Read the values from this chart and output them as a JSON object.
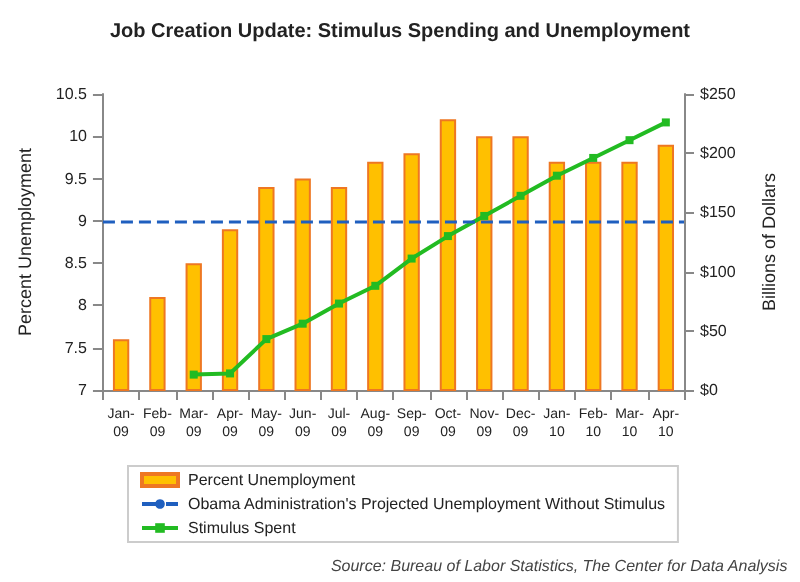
{
  "chart_data": {
    "type": "bar",
    "title": "Job Creation Update: Stimulus Spending and Unemployment",
    "ylabel": "Percent Unemployment",
    "y2label": "Billions of Dollars",
    "categories": [
      "Jan-09",
      "Feb-09",
      "Mar-09",
      "Apr-09",
      "May-09",
      "Jun-09",
      "Jul-09",
      "Aug-09",
      "Sep-09",
      "Oct-09",
      "Nov-09",
      "Dec-09",
      "Jan-10",
      "Feb-10",
      "Mar-10",
      "Apr-10"
    ],
    "series": [
      {
        "name": "Percent Unemployment",
        "color": "#ffc000",
        "values": [
          7.6,
          8.1,
          8.5,
          8.9,
          9.4,
          9.5,
          9.4,
          9.7,
          9.8,
          10.2,
          10.0,
          10.0,
          9.7,
          9.7,
          9.7,
          9.9
        ]
      },
      {
        "name": "Stimulus Spent",
        "type": "line",
        "axis": "y2",
        "color": "#22bb22",
        "marker": "square",
        "values": [
          null,
          null,
          13,
          14,
          43,
          56,
          73,
          88,
          111,
          130,
          147,
          164,
          181,
          196,
          211,
          226
        ]
      }
    ],
    "ref_lines": [
      {
        "axis": "y",
        "value": 9,
        "label": "Obama Administration's Projected Unemployment Without Stimulus",
        "color": "#1f5fbf",
        "line_style": "dashed"
      }
    ],
    "ylim": [
      7,
      10.5
    ],
    "yticks": [
      7,
      7.5,
      8,
      8.5,
      9,
      9.5,
      10,
      10.5
    ],
    "y2lim": [
      0,
      250
    ],
    "y2ticks": [
      {
        "value": 0,
        "label": "$0"
      },
      {
        "value": 50,
        "label": "$50"
      },
      {
        "value": 100,
        "label": "$100"
      },
      {
        "value": 150,
        "label": "$150"
      },
      {
        "value": 200,
        "label": "$200"
      },
      {
        "value": 250,
        "label": "$250"
      }
    ],
    "grid": false,
    "legend": "bottom",
    "annotations": [
      "Source: Bureau of Labor Statistics, The Center for Data Analysis"
    ]
  }
}
